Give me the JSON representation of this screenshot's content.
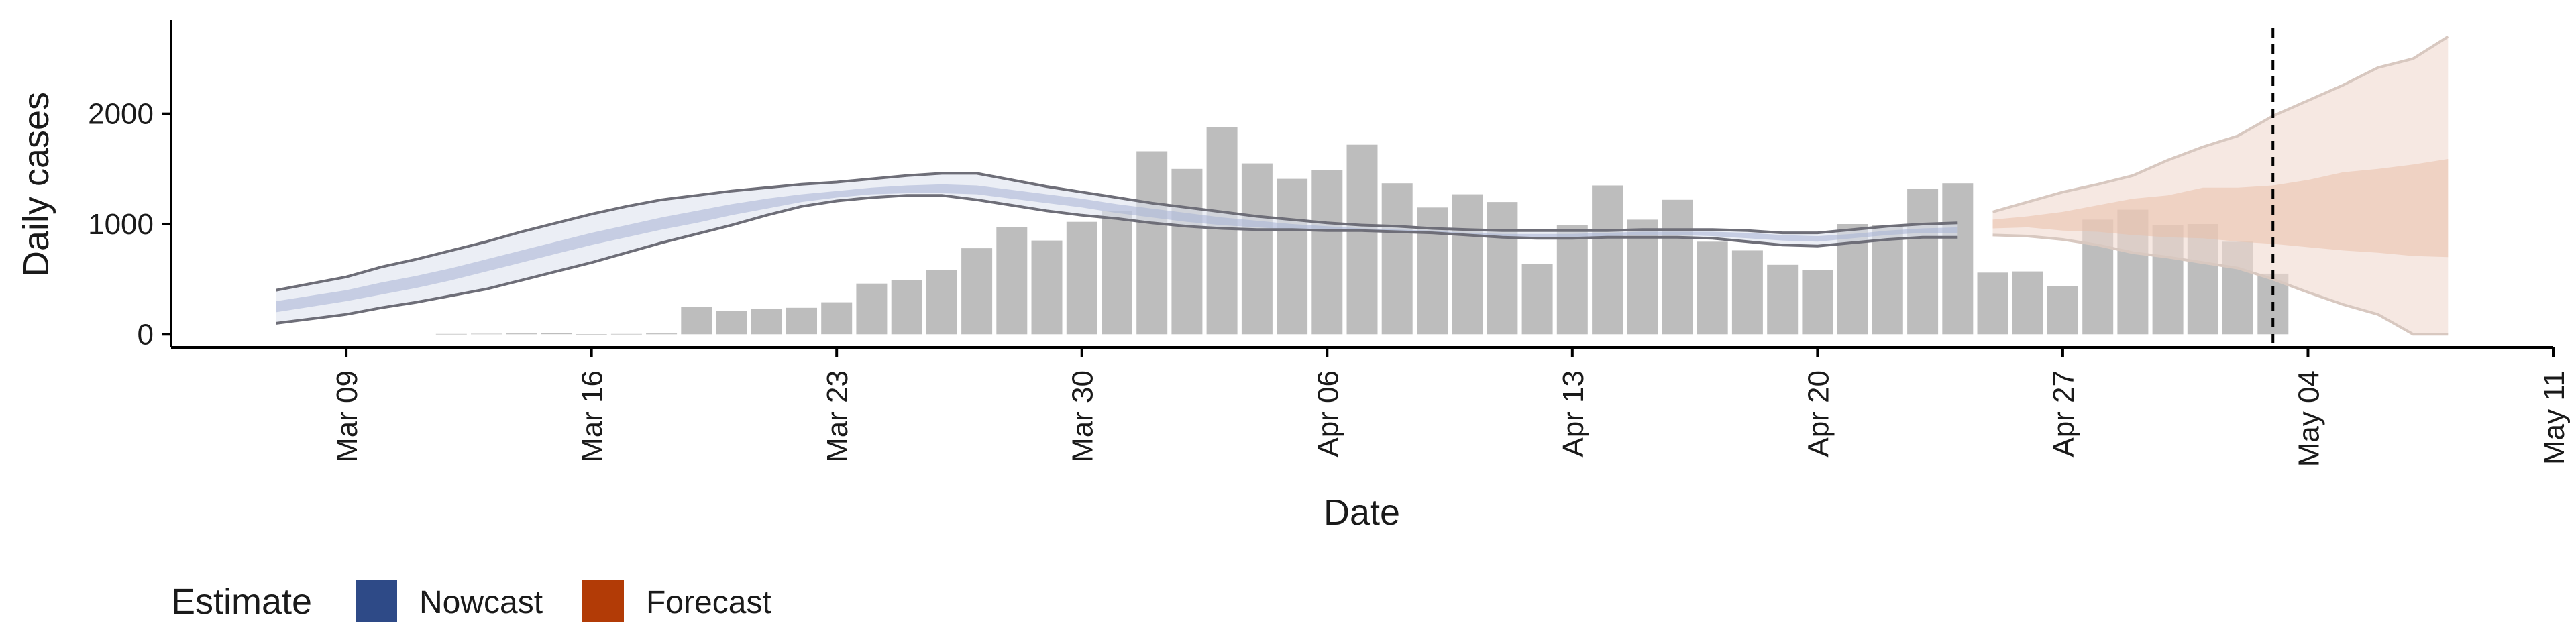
{
  "chart_data": {
    "type": "bar",
    "title": "",
    "xlabel": "Date",
    "ylabel": "Daily cases",
    "x_range": [
      "2020-03-04",
      "2020-05-11"
    ],
    "ylim": [
      -120,
      2850
    ],
    "y_ticks": [
      0,
      1000,
      2000
    ],
    "x_ticks": [
      {
        "date": "2020-03-09",
        "label": "Mar 09"
      },
      {
        "date": "2020-03-16",
        "label": "Mar 16"
      },
      {
        "date": "2020-03-23",
        "label": "Mar 23"
      },
      {
        "date": "2020-03-30",
        "label": "Mar 30"
      },
      {
        "date": "2020-04-06",
        "label": "Apr 06"
      },
      {
        "date": "2020-04-13",
        "label": "Apr 13"
      },
      {
        "date": "2020-04-20",
        "label": "Apr 20"
      },
      {
        "date": "2020-04-27",
        "label": "Apr 27"
      },
      {
        "date": "2020-05-04",
        "label": "May 04"
      },
      {
        "date": "2020-05-11",
        "label": "May 11"
      }
    ],
    "grid": false,
    "bar_color": "#bdbdbd",
    "bars": {
      "dates": [
        "2020-03-12",
        "2020-03-13",
        "2020-03-14",
        "2020-03-15",
        "2020-03-16",
        "2020-03-17",
        "2020-03-18",
        "2020-03-19",
        "2020-03-20",
        "2020-03-21",
        "2020-03-22",
        "2020-03-23",
        "2020-03-24",
        "2020-03-25",
        "2020-03-26",
        "2020-03-27",
        "2020-03-28",
        "2020-03-29",
        "2020-03-30",
        "2020-03-31",
        "2020-04-01",
        "2020-04-02",
        "2020-04-03",
        "2020-04-04",
        "2020-04-05",
        "2020-04-06",
        "2020-04-07",
        "2020-04-08",
        "2020-04-09",
        "2020-04-10",
        "2020-04-11",
        "2020-04-12",
        "2020-04-13",
        "2020-04-14",
        "2020-04-15",
        "2020-04-16",
        "2020-04-17",
        "2020-04-18",
        "2020-04-19",
        "2020-04-20",
        "2020-04-21",
        "2020-04-22",
        "2020-04-23",
        "2020-04-24",
        "2020-04-25",
        "2020-04-26",
        "2020-04-27",
        "2020-04-28",
        "2020-04-29",
        "2020-04-30",
        "2020-05-01",
        "2020-05-02",
        "2020-05-03"
      ],
      "values": [
        3,
        5,
        7,
        10,
        0,
        3,
        7,
        250,
        210,
        230,
        240,
        290,
        460,
        490,
        580,
        780,
        970,
        850,
        1020,
        1120,
        1660,
        1500,
        1880,
        1550,
        1410,
        1490,
        1720,
        1370,
        1150,
        1270,
        1200,
        640,
        990,
        1350,
        1040,
        1220,
        840,
        760,
        630,
        580,
        1000,
        990,
        1320,
        1370,
        560,
        570,
        440,
        1040,
        1130,
        990,
        1000,
        840,
        550
      ]
    },
    "series": [
      {
        "name": "Nowcast",
        "color": "#3c5488",
        "dates": [
          "2020-03-07",
          "2020-03-08",
          "2020-03-09",
          "2020-03-10",
          "2020-03-11",
          "2020-03-12",
          "2020-03-13",
          "2020-03-14",
          "2020-03-15",
          "2020-03-16",
          "2020-03-17",
          "2020-03-18",
          "2020-03-19",
          "2020-03-20",
          "2020-03-21",
          "2020-03-22",
          "2020-03-23",
          "2020-03-24",
          "2020-03-25",
          "2020-03-26",
          "2020-03-27",
          "2020-03-28",
          "2020-03-29",
          "2020-03-30",
          "2020-03-31",
          "2020-04-01",
          "2020-04-02",
          "2020-04-03",
          "2020-04-04",
          "2020-04-05",
          "2020-04-06",
          "2020-04-07",
          "2020-04-08",
          "2020-04-09",
          "2020-04-10",
          "2020-04-11",
          "2020-04-12",
          "2020-04-13",
          "2020-04-14",
          "2020-04-15",
          "2020-04-16",
          "2020-04-17",
          "2020-04-18",
          "2020-04-19",
          "2020-04-20",
          "2020-04-21",
          "2020-04-22",
          "2020-04-23",
          "2020-04-24"
        ],
        "upper90": [
          400,
          460,
          520,
          610,
          680,
          760,
          840,
          930,
          1010,
          1090,
          1160,
          1220,
          1260,
          1300,
          1330,
          1360,
          1380,
          1410,
          1440,
          1460,
          1460,
          1400,
          1340,
          1290,
          1240,
          1190,
          1150,
          1110,
          1070,
          1040,
          1010,
          990,
          980,
          960,
          950,
          940,
          940,
          940,
          940,
          950,
          950,
          950,
          940,
          920,
          920,
          950,
          980,
          1000,
          1010
        ],
        "upper50": [
          300,
          350,
          400,
          470,
          530,
          600,
          680,
          760,
          840,
          920,
          990,
          1060,
          1120,
          1180,
          1230,
          1270,
          1300,
          1330,
          1350,
          1360,
          1350,
          1310,
          1270,
          1230,
          1180,
          1140,
          1100,
          1060,
          1030,
          1000,
          980,
          960,
          950,
          940,
          920,
          910,
          910,
          910,
          920,
          930,
          930,
          930,
          920,
          900,
          890,
          910,
          940,
          960,
          970
        ],
        "lower50": [
          200,
          250,
          300,
          360,
          420,
          490,
          570,
          650,
          730,
          810,
          880,
          950,
          1010,
          1080,
          1140,
          1200,
          1240,
          1270,
          1280,
          1280,
          1270,
          1230,
          1190,
          1150,
          1100,
          1060,
          1020,
          990,
          970,
          950,
          940,
          930,
          930,
          920,
          900,
          880,
          880,
          880,
          890,
          900,
          900,
          890,
          870,
          850,
          840,
          870,
          900,
          920,
          920
        ],
        "lower90": [
          100,
          140,
          180,
          240,
          290,
          350,
          410,
          490,
          570,
          650,
          740,
          830,
          910,
          990,
          1080,
          1160,
          1210,
          1240,
          1260,
          1260,
          1220,
          1170,
          1120,
          1080,
          1050,
          1010,
          980,
          960,
          950,
          950,
          940,
          940,
          930,
          920,
          900,
          880,
          870,
          870,
          880,
          880,
          880,
          870,
          840,
          810,
          800,
          830,
          860,
          880,
          880
        ]
      },
      {
        "name": "Forecast",
        "color": "#b23b06",
        "dates": [
          "2020-04-25",
          "2020-04-26",
          "2020-04-27",
          "2020-04-28",
          "2020-04-29",
          "2020-04-30",
          "2020-05-01",
          "2020-05-02",
          "2020-05-03",
          "2020-05-04",
          "2020-05-05",
          "2020-05-06",
          "2020-05-07",
          "2020-05-08"
        ],
        "upper90": [
          1110,
          1200,
          1290,
          1360,
          1440,
          1580,
          1700,
          1800,
          1980,
          2120,
          2260,
          2420,
          2500,
          2700
        ],
        "upper50": [
          1040,
          1070,
          1110,
          1170,
          1230,
          1260,
          1330,
          1330,
          1350,
          1400,
          1470,
          1500,
          1540,
          1590
        ],
        "lower50": [
          960,
          970,
          940,
          930,
          900,
          880,
          870,
          840,
          820,
          790,
          760,
          740,
          710,
          700
        ],
        "lower90": [
          900,
          890,
          860,
          810,
          740,
          700,
          650,
          600,
          500,
          380,
          270,
          180,
          0,
          0
        ]
      }
    ],
    "vline": {
      "date": "2020-05-03",
      "style": "dashed"
    },
    "legend": {
      "title": "Estimate",
      "position": "bottom-left",
      "items": [
        {
          "label": "Nowcast",
          "color": "#2e4a87"
        },
        {
          "label": "Forecast",
          "color": "#b23b06"
        }
      ]
    }
  }
}
